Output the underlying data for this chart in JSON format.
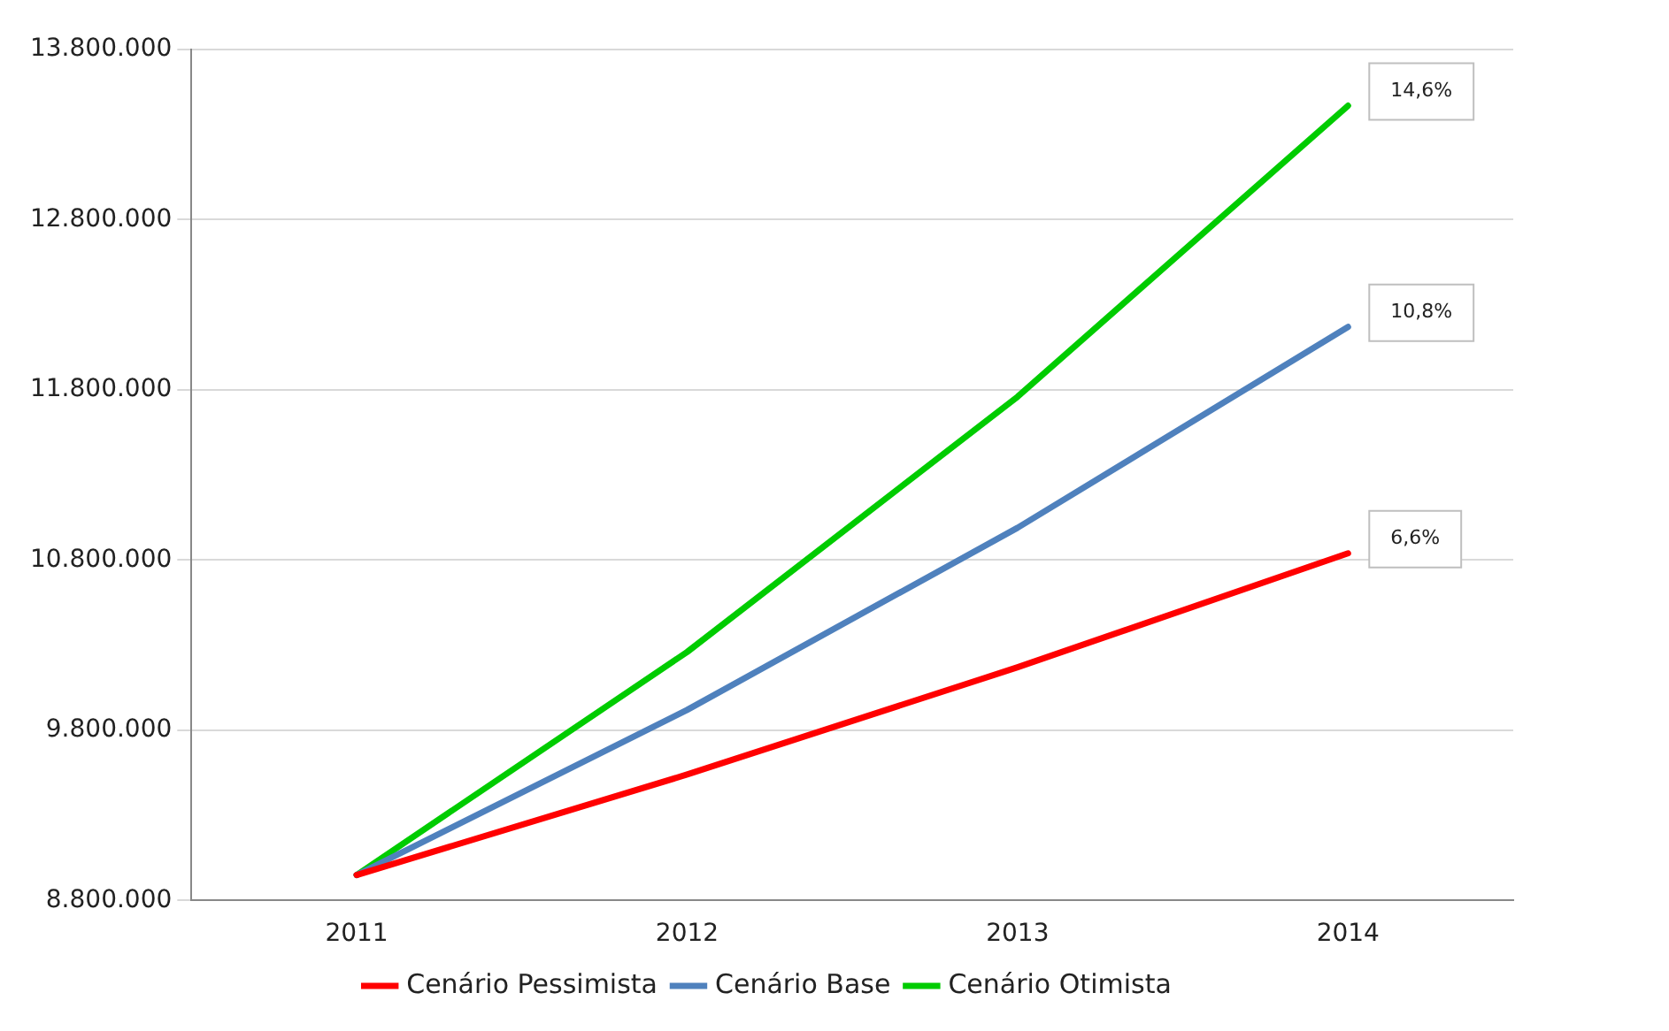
{
  "chart_data": {
    "type": "line",
    "categories": [
      "2011",
      "2012",
      "2013",
      "2014"
    ],
    "series": [
      {
        "name": "Cenário Pessimista",
        "color": "#ff0000",
        "values": [
          8950000,
          9540000,
          10170000,
          10840000
        ]
      },
      {
        "name": "Cenário Base",
        "color": "#4f81bd",
        "values": [
          8950000,
          9920000,
          10990000,
          12170000
        ]
      },
      {
        "name": "Cenário Otimista",
        "color": "#00cc00",
        "values": [
          8950000,
          10260000,
          11760000,
          13470000
        ]
      }
    ],
    "ylim": [
      8800000,
      13800000
    ],
    "yticks": [
      {
        "value": 8800000,
        "label": "8.800.000"
      },
      {
        "value": 9800000,
        "label": "9.800.000"
      },
      {
        "value": 10800000,
        "label": "10.800.000"
      },
      {
        "value": 11800000,
        "label": "11.800.000"
      },
      {
        "value": 12800000,
        "label": "12.800.000"
      },
      {
        "value": 13800000,
        "label": "13.800.000"
      }
    ],
    "annotations": [
      {
        "text": "14,6%",
        "x": "2014",
        "y": 13470000
      },
      {
        "text": "10,8%",
        "x": "2014",
        "y": 12170000
      },
      {
        "text": "6,6%",
        "x": "2014",
        "y": 10840000
      }
    ],
    "grid": "y",
    "legend": "bottom",
    "marker": "none",
    "line_style": "solid"
  }
}
